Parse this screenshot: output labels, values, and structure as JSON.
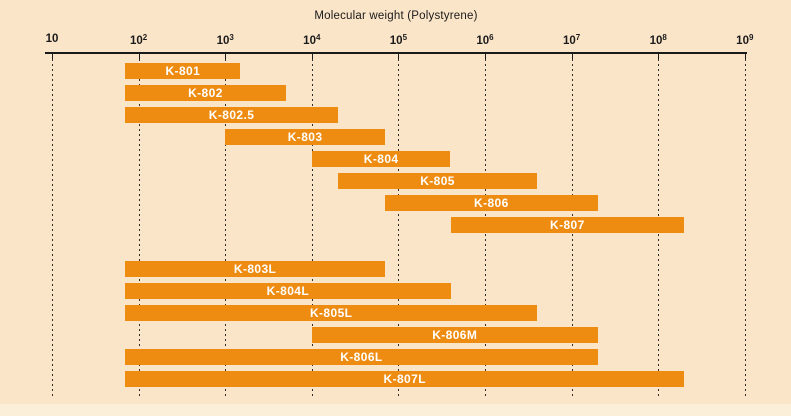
{
  "colors": {
    "background": "#FAE5C9",
    "bar": "#EE8C12",
    "bar_label": "#FFFFFF",
    "axis": "#1A1A1A",
    "grid": "#2E2E2E",
    "text": "#1A1A1A"
  },
  "chart_data": {
    "type": "bar",
    "subtype": "horizontal-range-bars",
    "scale": "log10",
    "title": "Molecular weight (Polystyrene)",
    "xlabel": "Molecular weight (Polystyrene)",
    "xlim": [
      10,
      1000000000
    ],
    "grid": "vertical dashed line at each decade",
    "legend": "none",
    "ticks": [
      {
        "base": "10",
        "sup": ""
      },
      {
        "base": "10",
        "sup": "2"
      },
      {
        "base": "10",
        "sup": "3"
      },
      {
        "base": "10",
        "sup": "4"
      },
      {
        "base": "10",
        "sup": "5"
      },
      {
        "base": "10",
        "sup": "6"
      },
      {
        "base": "10",
        "sup": "7"
      },
      {
        "base": "10",
        "sup": "8"
      },
      {
        "base": "10",
        "sup": "9"
      }
    ],
    "series": [
      {
        "name": "K-801",
        "group": 1,
        "range": [
          70,
          1500
        ]
      },
      {
        "name": "K-802",
        "group": 1,
        "range": [
          70,
          5000
        ]
      },
      {
        "name": "K-802.5",
        "group": 1,
        "range": [
          70,
          20000
        ]
      },
      {
        "name": "K-803",
        "group": 1,
        "range": [
          1000,
          70000
        ]
      },
      {
        "name": "K-804",
        "group": 1,
        "range": [
          10000,
          400000
        ]
      },
      {
        "name": "K-805",
        "group": 1,
        "range": [
          20000,
          4000000
        ]
      },
      {
        "name": "K-806",
        "group": 1,
        "range": [
          70000,
          20000000
        ]
      },
      {
        "name": "K-807",
        "group": 1,
        "range": [
          400000,
          200000000
        ]
      },
      {
        "name": "K-803L",
        "group": 2,
        "range": [
          70,
          70000
        ]
      },
      {
        "name": "K-804L",
        "group": 2,
        "range": [
          70,
          400000
        ]
      },
      {
        "name": "K-805L",
        "group": 2,
        "range": [
          70,
          4000000
        ]
      },
      {
        "name": "K-806M",
        "group": 2,
        "range": [
          10000,
          20000000
        ]
      },
      {
        "name": "K-806L",
        "group": 2,
        "range": [
          70,
          20000000
        ]
      },
      {
        "name": "K-807L",
        "group": 2,
        "range": [
          70,
          200000000
        ]
      }
    ]
  }
}
